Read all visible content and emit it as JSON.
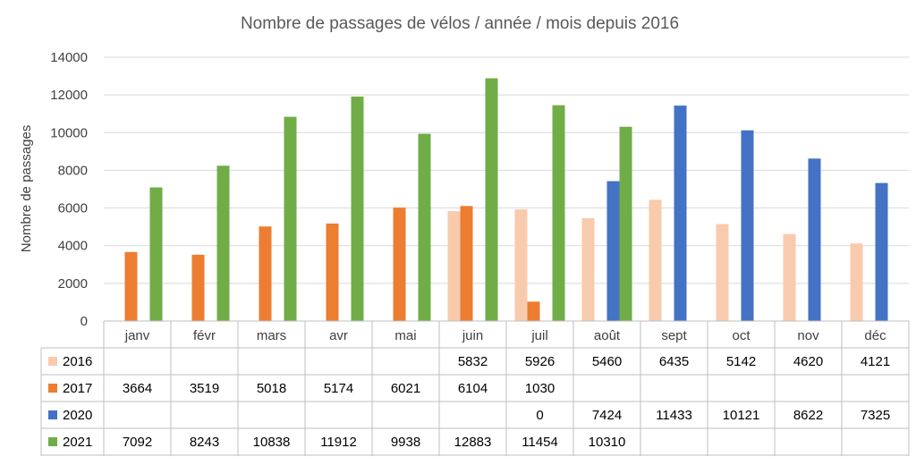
{
  "chart_data": {
    "type": "bar",
    "title": "Nombre de passages de vélos / année / mois depuis 2016",
    "ylabel": "Nombre de passages",
    "xlabel": "",
    "ylim": [
      0,
      14000
    ],
    "yticks": [
      "0",
      "2000",
      "4000",
      "6000",
      "8000",
      "10000",
      "12000",
      "14000"
    ],
    "grid": true,
    "legend": "data-table",
    "categories": [
      "janv",
      "févr",
      "mars",
      "avr",
      "mai",
      "juin",
      "juil",
      "août",
      "sept",
      "oct",
      "nov",
      "déc"
    ],
    "series": [
      {
        "name": "2016",
        "color": "#f8cbad",
        "values": [
          null,
          null,
          null,
          null,
          null,
          5832,
          5926,
          5460,
          6435,
          5142,
          4620,
          4121
        ]
      },
      {
        "name": "2017",
        "color": "#ed7d31",
        "values": [
          3664,
          3519,
          5018,
          5174,
          6021,
          6104,
          1030,
          null,
          null,
          null,
          null,
          null
        ]
      },
      {
        "name": "2020",
        "color": "#4472c4",
        "values": [
          null,
          null,
          null,
          null,
          null,
          null,
          0,
          7424,
          11433,
          10121,
          8622,
          7325
        ]
      },
      {
        "name": "2021",
        "color": "#70ad47",
        "values": [
          7092,
          8243,
          10838,
          11912,
          9938,
          12883,
          11454,
          10310,
          null,
          null,
          null,
          null
        ]
      }
    ]
  }
}
